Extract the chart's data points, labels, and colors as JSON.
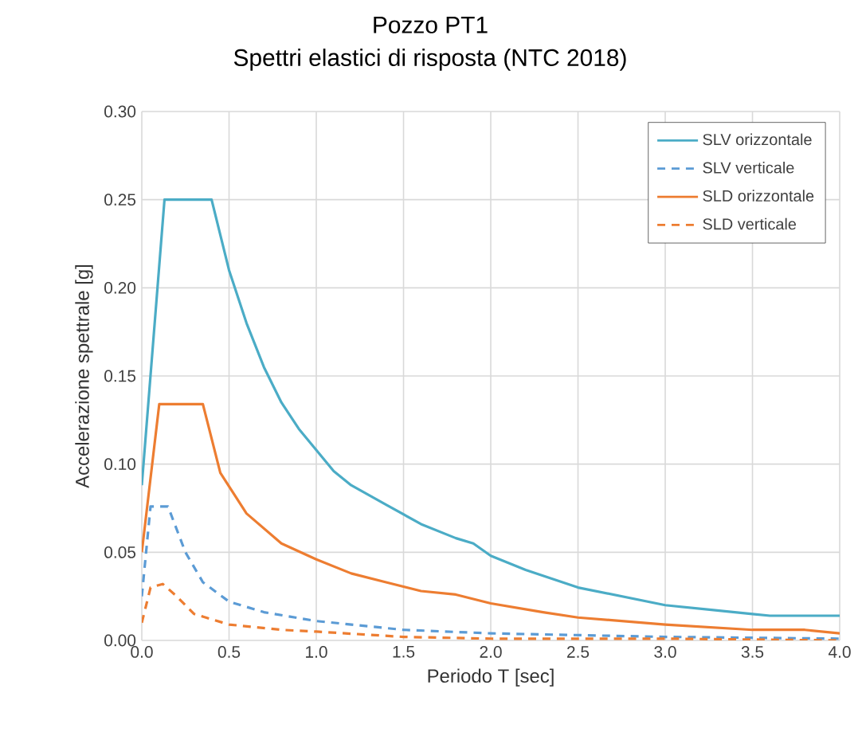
{
  "chart_data": {
    "type": "line",
    "title": "Pozzo PT1",
    "subtitle": "Spettri elastici di risposta (NTC 2018)",
    "xlabel": "Periodo T [sec]",
    "ylabel": "Accelerazione spettrale  [g]",
    "xlim": [
      0,
      4
    ],
    "ylim": [
      0,
      0.3
    ],
    "xticks": [
      {
        "value": 0,
        "label": "0.0"
      },
      {
        "value": 0.5,
        "label": "0.5"
      },
      {
        "value": 1,
        "label": "1.0"
      },
      {
        "value": 1.5,
        "label": "1.5"
      },
      {
        "value": 2,
        "label": "2.0"
      },
      {
        "value": 2.5,
        "label": "2.5"
      },
      {
        "value": 3,
        "label": "3.0"
      },
      {
        "value": 3.5,
        "label": "3.5"
      },
      {
        "value": 4,
        "label": "4.0"
      }
    ],
    "yticks": [
      {
        "value": 0,
        "label": "0.00"
      },
      {
        "value": 0.05,
        "label": "0.05"
      },
      {
        "value": 0.1,
        "label": "0.10"
      },
      {
        "value": 0.15,
        "label": "0.15"
      },
      {
        "value": 0.2,
        "label": "0.20"
      },
      {
        "value": 0.25,
        "label": "0.25"
      },
      {
        "value": 0.3,
        "label": "0.30"
      }
    ],
    "grid": true,
    "legend": "top right",
    "marker": "none",
    "series": [
      {
        "name": "SLV orizzontale",
        "color": "#4bacc6",
        "line_style": "solid",
        "x": [
          0,
          0.13,
          0.4,
          0.5,
          0.6,
          0.7,
          0.8,
          0.9,
          1.0,
          1.1,
          1.2,
          1.4,
          1.6,
          1.8,
          1.9,
          2.0,
          2.2,
          2.5,
          3.0,
          3.5,
          3.6,
          4.0
        ],
        "values": [
          0.088,
          0.25,
          0.25,
          0.21,
          0.18,
          0.155,
          0.135,
          0.12,
          0.108,
          0.096,
          0.088,
          0.077,
          0.066,
          0.058,
          0.055,
          0.048,
          0.04,
          0.03,
          0.02,
          0.015,
          0.014,
          0.014
        ]
      },
      {
        "name": "SLV verticale",
        "color": "#5b9bd5",
        "line_style": "dashed",
        "x": [
          0,
          0.05,
          0.15,
          0.25,
          0.35,
          0.5,
          0.7,
          1.0,
          1.5,
          2.0,
          3.0,
          4.0
        ],
        "values": [
          0.025,
          0.076,
          0.076,
          0.05,
          0.033,
          0.022,
          0.016,
          0.011,
          0.006,
          0.004,
          0.002,
          0.001
        ]
      },
      {
        "name": "SLD orizzontale",
        "color": "#ed7d31",
        "line_style": "solid",
        "x": [
          0,
          0.1,
          0.35,
          0.45,
          0.6,
          0.8,
          1.0,
          1.2,
          1.4,
          1.6,
          1.8,
          2.0,
          2.3,
          2.5,
          3.0,
          3.5,
          3.8,
          4.0
        ],
        "values": [
          0.05,
          0.134,
          0.134,
          0.095,
          0.072,
          0.055,
          0.046,
          0.038,
          0.033,
          0.028,
          0.026,
          0.021,
          0.016,
          0.013,
          0.009,
          0.006,
          0.006,
          0.004
        ]
      },
      {
        "name": "SLD verticale",
        "color": "#ed7d31",
        "line_style": "dashed",
        "x": [
          0,
          0.05,
          0.12,
          0.2,
          0.3,
          0.5,
          0.8,
          1.0,
          1.5,
          2.0,
          3.0,
          4.0
        ],
        "values": [
          0.01,
          0.03,
          0.032,
          0.025,
          0.015,
          0.009,
          0.006,
          0.005,
          0.002,
          0.001,
          0.001,
          0.0
        ]
      }
    ]
  }
}
